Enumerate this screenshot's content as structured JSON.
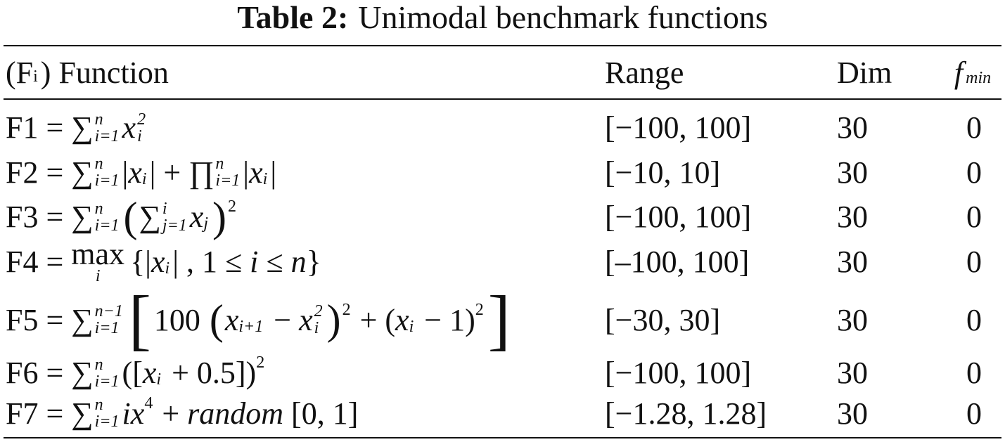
{
  "title": {
    "label": "Table 2:",
    "text": "Unimodal benchmark functions"
  },
  "header": {
    "function": [
      "(F",
      "i",
      ") Function"
    ],
    "range": "Range",
    "dim": "Dim",
    "fmin": [
      "f",
      "min"
    ]
  },
  "rows": [
    {
      "function": [
        "F1 = ",
        "∑",
        "n",
        "i=1",
        "x",
        "2",
        "i"
      ],
      "range": "[−100, 100]",
      "dim": "30",
      "fmin": "0"
    },
    {
      "function": [
        "F2 = ",
        "∑",
        "n",
        "i=1",
        "|",
        "x",
        "i",
        "| + ",
        "∏",
        "n",
        "i=1",
        "|",
        "x",
        "i",
        "|"
      ],
      "range": "[−10, 10]",
      "dim": "30",
      "fmin": "0"
    },
    {
      "function": [
        "F3 = ",
        "∑",
        "n",
        "i=1",
        "(",
        "∑",
        "i",
        "j=1",
        "x",
        "j",
        ")",
        "2"
      ],
      "range": "[−100, 100]",
      "dim": "30",
      "fmin": "0"
    },
    {
      "function": [
        "F4 = ",
        "max",
        "i",
        "{|",
        "x",
        "i",
        "| , 1 ≤ ",
        "i",
        " ≤ ",
        "n",
        "}"
      ],
      "range": "[–100, 100]",
      "dim": "30",
      "fmin": "0"
    },
    {
      "function": [
        "F5 = ",
        "∑",
        "n−1",
        "i=1",
        "[",
        "100 ",
        "(",
        "x",
        "i+1",
        " − ",
        "x",
        "2",
        "i",
        ")",
        "2",
        " + (",
        "x",
        "i",
        " − 1)",
        "2",
        "]"
      ],
      "range": "[−30, 30]",
      "dim": "30",
      "fmin": "0"
    },
    {
      "function": [
        "F6 = ",
        "∑",
        "n",
        "i=1",
        "([",
        "x",
        "i",
        " + 0.5])",
        "2"
      ],
      "range": "[−100, 100]",
      "dim": "30",
      "fmin": "0"
    },
    {
      "function": [
        "F7 = ",
        "∑",
        "n",
        "i=1",
        "ix",
        "4",
        " + ",
        "random",
        " [0, 1]"
      ],
      "range": "[−1.28, 1.28]",
      "dim": "30",
      "fmin": "0"
    }
  ]
}
